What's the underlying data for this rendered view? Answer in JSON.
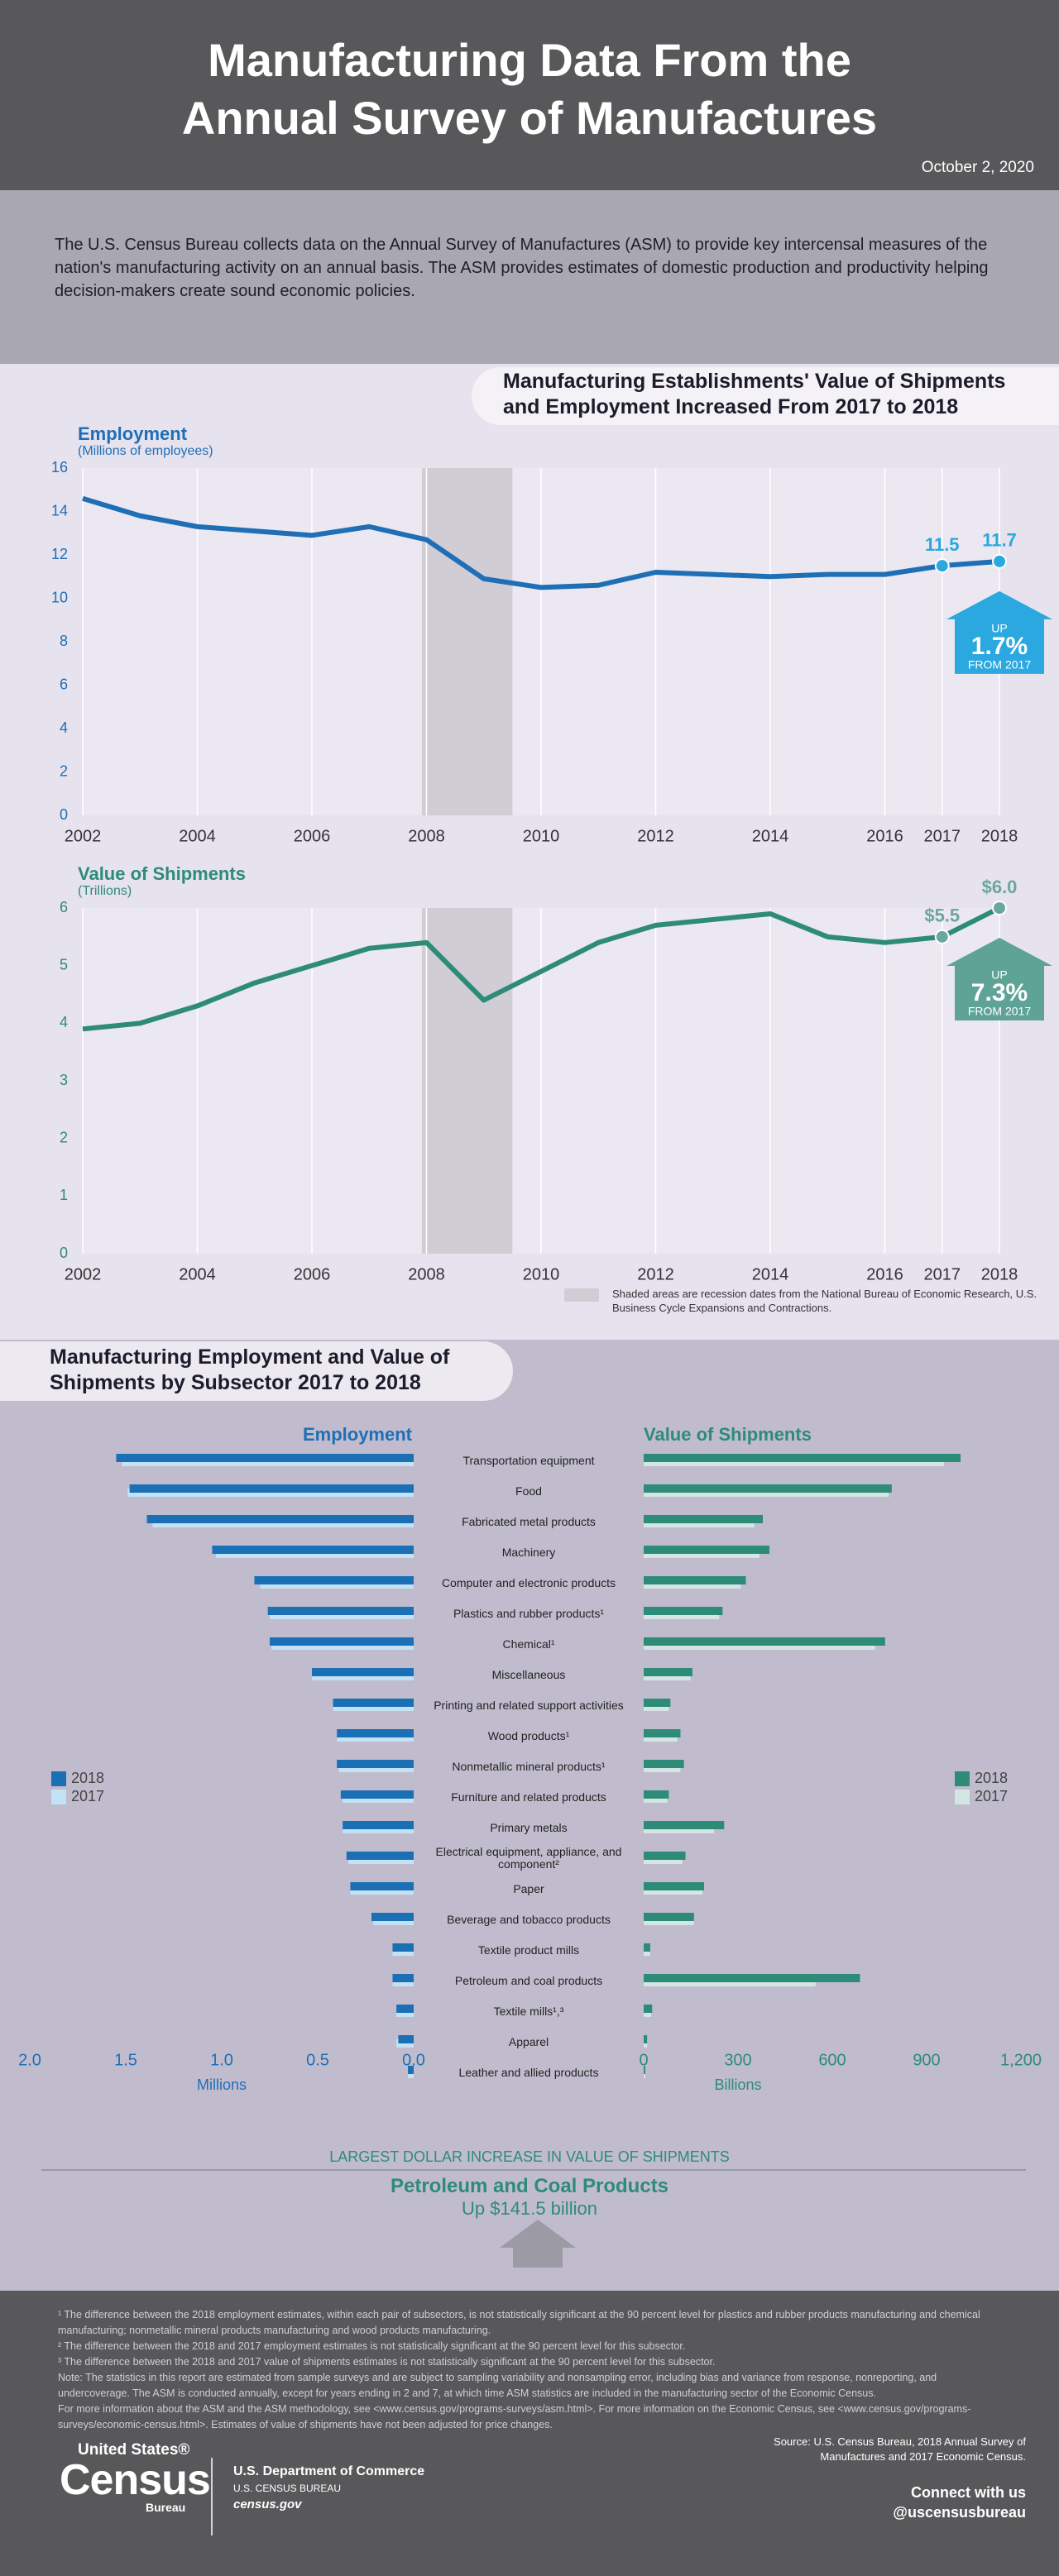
{
  "header": {
    "title": [
      "Manufacturing Data From the",
      "Annual Survey of Manufactures"
    ],
    "date": "October 2, 2020"
  },
  "intro": "The U.S. Census Bureau collects data on the Annual Survey of Manufactures (ASM) to provide key intercensal measures of the nation's manufacturing activity on an annual basis. The ASM provides estimates of domestic production and productivity helping decision-makers create sound economic policies.",
  "trends_title": [
    "Manufacturing Establishments' Value of Shipments",
    "and Employment Increased From 2017 to 2018"
  ],
  "recession_note": "Shaded areas are recession dates from the National Bureau of Economic Research, U.S. Business Cycle Expansions and Contractions.",
  "subsector_title": [
    "Manufacturing Employment and Value of",
    "Shipments by Subsector 2017 to 2018"
  ],
  "chart_data": [
    {
      "type": "line",
      "title": "Employment",
      "subtitle": "(Millions of employees)",
      "color": "#1f6fb6",
      "x": [
        2002,
        2003,
        2004,
        2005,
        2006,
        2007,
        2008,
        2009,
        2010,
        2011,
        2012,
        2013,
        2014,
        2015,
        2016,
        2017,
        2018
      ],
      "values": [
        14.6,
        13.8,
        13.3,
        13.1,
        12.9,
        13.3,
        12.7,
        10.9,
        10.5,
        10.6,
        11.2,
        11.1,
        11.0,
        11.1,
        11.1,
        11.5,
        11.7
      ],
      "value_labels": [
        null,
        null,
        null,
        null,
        null,
        null,
        null,
        null,
        null,
        null,
        null,
        null,
        null,
        null,
        null,
        "11.5",
        "11.7"
      ],
      "label_color": "#2aa8df",
      "xlim": [
        2002,
        2018
      ],
      "xticks": [
        2002,
        2004,
        2006,
        2008,
        2010,
        2012,
        2014,
        2016,
        2017,
        2018
      ],
      "ylim": [
        0,
        16
      ],
      "yticks": [
        0,
        2,
        4,
        6,
        8,
        10,
        12,
        14,
        16
      ],
      "grid": "x",
      "shaded": [
        2007.92,
        2009.5
      ],
      "callout": {
        "top": "UP",
        "change": "1.7%",
        "bottom": "FROM 2017"
      },
      "callout_color": "#2aa8df"
    },
    {
      "type": "line",
      "title": "Value of Shipments",
      "subtitle": "(Trillions)",
      "color": "#2e8b78",
      "x": [
        2002,
        2003,
        2004,
        2005,
        2006,
        2007,
        2008,
        2009,
        2010,
        2011,
        2012,
        2013,
        2014,
        2015,
        2016,
        2017,
        2018
      ],
      "values": [
        3.9,
        4.0,
        4.3,
        4.7,
        5.0,
        5.3,
        5.4,
        4.4,
        4.9,
        5.4,
        5.7,
        5.8,
        5.9,
        5.5,
        5.4,
        5.5,
        6.0
      ],
      "value_labels": [
        null,
        null,
        null,
        null,
        null,
        null,
        null,
        null,
        null,
        null,
        null,
        null,
        null,
        null,
        null,
        "$5.5",
        "$6.0"
      ],
      "label_color": "#6aa89c",
      "xlim": [
        2002,
        2018
      ],
      "xticks": [
        2002,
        2004,
        2006,
        2008,
        2010,
        2012,
        2014,
        2016,
        2017,
        2018
      ],
      "ylim": [
        0,
        6
      ],
      "yticks": [
        0,
        1,
        2,
        3,
        4,
        5,
        6
      ],
      "grid": "x",
      "shaded": [
        2007.92,
        2009.5
      ],
      "callout": {
        "top": "UP",
        "change": "7.3%",
        "bottom": "FROM 2017"
      },
      "callout_color": "#5ea396"
    },
    {
      "type": "butterfly",
      "categories": [
        "Transportation equipment",
        "Food",
        "Fabricated metal products",
        "Machinery",
        "Computer and electronic products",
        "Plastics and rubber products¹",
        "Chemical¹",
        "Miscellaneous",
        "Printing and related support activities",
        "Wood products¹",
        "Nonmetallic mineral products¹",
        "Furniture and related products",
        "Primary metals",
        "Electrical equipment, appliance, and component²",
        "Paper",
        "Beverage and tobacco products",
        "Textile product mills",
        "Petroleum and coal products",
        "Textile mills¹,³",
        "Apparel",
        "Leather and allied products"
      ],
      "left": {
        "title": "Employment",
        "axis_label": "Millions",
        "xlim": [
          0,
          2
        ],
        "xticks": [
          {
            "value": 2,
            "label": "2.0"
          },
          1.5,
          {
            "value": 1,
            "label": "1.0"
          },
          0.5,
          {
            "value": 0,
            "label": "0.0"
          }
        ],
        "color": "#1f6fb6",
        "series": [
          {
            "name": "2018",
            "color": "#1a6fb5",
            "values": [
              1.55,
              1.48,
              1.39,
              1.05,
              0.83,
              0.76,
              0.75,
              0.53,
              0.42,
              0.4,
              0.4,
              0.38,
              0.37,
              0.35,
              0.33,
              0.22,
              0.11,
              0.11,
              0.09,
              0.08,
              0.03
            ]
          },
          {
            "name": "2017",
            "color": "#c4e2f5",
            "values": [
              1.52,
              1.49,
              1.36,
              1.03,
              0.8,
              0.75,
              0.74,
              0.53,
              0.42,
              0.4,
              0.39,
              0.37,
              0.37,
              0.34,
              0.33,
              0.21,
              0.11,
              0.11,
              0.09,
              0.09,
              0.03
            ]
          }
        ]
      },
      "right": {
        "title": "Value of Shipments",
        "axis_label": "Billions",
        "xlim": [
          0,
          1200
        ],
        "xticks": [
          0,
          300,
          600,
          900,
          {
            "value": 1200,
            "label": "1,200"
          }
        ],
        "color": "#2e8b78",
        "series": [
          {
            "name": "2018",
            "color": "#2e8b78",
            "values": [
              1008,
              789,
              379,
              400,
              325,
              251,
              768,
              155,
              85,
              117,
              128,
              80,
              256,
              133,
              192,
              160,
              21,
              688,
              27,
              11,
              5
            ]
          },
          {
            "name": "2017",
            "color": "#d3e6e4",
            "values": [
              955,
              779,
              352,
              368,
              309,
              240,
              736,
              149,
              80,
              107,
              117,
              75,
              224,
              123,
              187,
              160,
              21,
              547,
              24,
              11,
              5
            ]
          }
        ]
      }
    }
  ],
  "highlight": {
    "heading": "LARGEST DOLLAR INCREASE IN VALUE OF SHIPMENTS",
    "name": "Petroleum and Coal Products",
    "change": "Up $141.5 billion"
  },
  "notes": [
    "¹ The difference between the 2018 employment estimates, within each pair of subsectors, is not statistically significant at the 90 percent level for plastics and rubber products manufacturing and chemical manufacturing; nonmetallic mineral products manufacturing and wood products manufacturing.",
    "² The difference between the 2018 and 2017 employment estimates is not statistically significant at the 90 percent level for this subsector.",
    "³ The difference between the 2018 and 2017 value of shipments estimates is not statistically significant at the 90 percent level for this subsector.",
    "Note: The statistics in this report are estimated from sample surveys and are subject to sampling variability and nonsampling error, including bias and variance from response, nonreporting, and undercoverage. The ASM is conducted annually, except for years ending in 2 and 7, at which time ASM statistics are included in the manufacturing sector of the Economic Census.",
    "For more information about the ASM and the ASM methodology, see <www.census.gov/programs-surveys/asm.html>. For more information on the Economic Census, see <www.census.gov/programs-surveys/economic-census.html>. Estimates of value of shipments have not been adjusted for price changes."
  ],
  "footer": {
    "logo": [
      "United States®",
      "Census",
      "Bureau"
    ],
    "department": "U.S. Department of Commerce",
    "bureau": "U.S. CENSUS BUREAU",
    "site": "census.gov",
    "source": "Source: U.S. Census Bureau, 2018 Annual Survey of Manufactures and 2017 Economic Census.",
    "connect": "Connect with us",
    "handle": "@uscensusbureau"
  }
}
